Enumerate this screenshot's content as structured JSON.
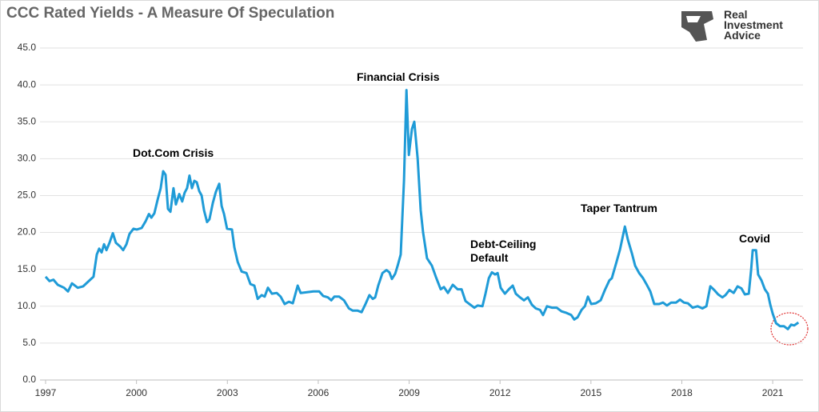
{
  "chart_data": {
    "type": "line",
    "title": "CCC Rated Yields - A Measure Of Speculation",
    "logo": "Real Investment Advice",
    "annotations": [
      "Dot.Com Crisis",
      "Financial Crisis",
      "Debt-Ceiling Default",
      "Taper Tantrum",
      "Covid"
    ],
    "xlim": [
      1997,
      2022
    ],
    "xticks": [
      1997,
      2000,
      2003,
      2006,
      2009,
      2012,
      2015,
      2018,
      2021
    ],
    "ylim": [
      0,
      45
    ],
    "yticks": [
      {
        "value": 0,
        "label": "0.0"
      },
      {
        "value": 5,
        "label": "5.0"
      },
      {
        "value": 10,
        "label": "10.0"
      },
      {
        "value": 15,
        "label": "15.0"
      },
      {
        "value": 20,
        "label": "20.0"
      },
      {
        "value": 25,
        "label": "25.0"
      },
      {
        "value": 30,
        "label": "30.0"
      },
      {
        "value": 35,
        "label": "35.0"
      },
      {
        "value": 40,
        "label": "40.0"
      },
      {
        "value": 45,
        "label": "45.0"
      }
    ],
    "grid": true,
    "x": [
      1997.0,
      1997.13,
      1997.26,
      1997.4,
      1997.61,
      1997.74,
      1997.87,
      1998.06,
      1998.24,
      1998.45,
      1998.58,
      1998.69,
      1998.77,
      1998.85,
      1998.93,
      1999.01,
      1999.11,
      1999.22,
      1999.32,
      1999.46,
      1999.56,
      1999.67,
      1999.77,
      1999.9,
      2000.01,
      2000.17,
      2000.3,
      2000.41,
      2000.49,
      2000.59,
      2000.7,
      2000.8,
      2000.88,
      2000.96,
      2001.04,
      2001.12,
      2001.22,
      2001.3,
      2001.41,
      2001.51,
      2001.59,
      2001.67,
      2001.75,
      2001.83,
      2001.91,
      2001.99,
      2002.07,
      2002.15,
      2002.23,
      2002.33,
      2002.41,
      2002.52,
      2002.62,
      2002.73,
      2002.81,
      2002.89,
      2002.99,
      2003.15,
      2003.23,
      2003.34,
      2003.47,
      2003.63,
      2003.76,
      2003.89,
      2004.0,
      2004.13,
      2004.23,
      2004.34,
      2004.47,
      2004.63,
      2004.76,
      2004.89,
      2005.03,
      2005.16,
      2005.32,
      2005.42,
      2005.63,
      2005.84,
      2006.03,
      2006.16,
      2006.32,
      2006.43,
      2006.53,
      2006.69,
      2006.85,
      2007.01,
      2007.14,
      2007.3,
      2007.43,
      2007.56,
      2007.69,
      2007.8,
      2007.88,
      2007.98,
      2008.12,
      2008.25,
      2008.35,
      2008.43,
      2008.54,
      2008.62,
      2008.72,
      2008.83,
      2008.91,
      2008.99,
      2009.09,
      2009.17,
      2009.28,
      2009.38,
      2009.46,
      2009.59,
      2009.75,
      2009.88,
      2010.04,
      2010.15,
      2010.28,
      2010.44,
      2010.6,
      2010.73,
      2010.86,
      2011.02,
      2011.15,
      2011.26,
      2011.42,
      2011.52,
      2011.63,
      2011.73,
      2011.84,
      2011.92,
      2012.02,
      2012.16,
      2012.29,
      2012.42,
      2012.52,
      2012.66,
      2012.79,
      2012.92,
      2013.05,
      2013.18,
      2013.32,
      2013.42,
      2013.55,
      2013.71,
      2013.87,
      2014.03,
      2014.19,
      2014.35,
      2014.45,
      2014.56,
      2014.69,
      2014.8,
      2014.9,
      2015.01,
      2015.16,
      2015.32,
      2015.46,
      2015.61,
      2015.69,
      2015.83,
      2015.96,
      2016.12,
      2016.22,
      2016.35,
      2016.46,
      2016.59,
      2016.72,
      2016.83,
      2016.96,
      2017.09,
      2017.25,
      2017.38,
      2017.51,
      2017.65,
      2017.81,
      2017.94,
      2018.07,
      2018.2,
      2018.36,
      2018.52,
      2018.68,
      2018.81,
      2018.94,
      2019.07,
      2019.2,
      2019.34,
      2019.44,
      2019.57,
      2019.71,
      2019.84,
      2019.97,
      2020.08,
      2020.21,
      2020.29,
      2020.34,
      2020.45,
      2020.52,
      2020.63,
      2020.74,
      2020.84,
      2020.92,
      2021.0,
      2021.11,
      2021.24,
      2021.37,
      2021.5,
      2021.61,
      2021.71,
      2021.85
    ],
    "series": [
      {
        "name": "CCC Rated Yields",
        "color": "#1f9bd7",
        "values": [
          14,
          13.4,
          13.6,
          12.9,
          12.5,
          12,
          13.1,
          12.5,
          12.7,
          13.5,
          14,
          17,
          17.8,
          17.3,
          18.4,
          17.6,
          18.6,
          19.9,
          18.6,
          18.1,
          17.6,
          18.4,
          19.8,
          20.5,
          20.4,
          20.6,
          21.5,
          22.5,
          22,
          22.6,
          24.5,
          26,
          28.3,
          27.8,
          23.2,
          22.8,
          26,
          23.8,
          25.2,
          24.2,
          25.4,
          26,
          27.7,
          26,
          27,
          26.8,
          25.6,
          25,
          23,
          21.4,
          21.8,
          24,
          25.5,
          26.6,
          23.6,
          22.5,
          20.5,
          20.4,
          18,
          16,
          14.7,
          14.5,
          13,
          12.8,
          11,
          11.5,
          11.3,
          12.5,
          11.7,
          11.8,
          11.3,
          10.3,
          10.6,
          10.4,
          12.8,
          11.8,
          11.9,
          12,
          12,
          11.4,
          11.2,
          10.8,
          11.3,
          11.3,
          10.8,
          9.7,
          9.4,
          9.4,
          9.2,
          10.3,
          11.5,
          11,
          11.2,
          12.8,
          14.5,
          14.9,
          14.6,
          13.7,
          14.4,
          15.5,
          17,
          27,
          39.3,
          30.5,
          34,
          35,
          30,
          23,
          20,
          16.5,
          15.5,
          14,
          12.3,
          12.6,
          11.8,
          12.9,
          12.3,
          12.3,
          10.7,
          10.2,
          9.8,
          10.1,
          10,
          11.7,
          13.8,
          14.6,
          14.3,
          14.5,
          12.5,
          11.7,
          12.3,
          12.8,
          11.7,
          11.2,
          10.8,
          11.2,
          10.2,
          9.7,
          9.5,
          8.8,
          10,
          9.8,
          9.8,
          9.3,
          9.1,
          8.8,
          8.2,
          8.5,
          9.5,
          10,
          11.3,
          10.3,
          10.4,
          10.8,
          12.2,
          13.5,
          13.8,
          15.8,
          17.7,
          20.8,
          19,
          17.2,
          15.5,
          14.5,
          13.8,
          13,
          12,
          10.3,
          10.3,
          10.5,
          10.1,
          10.5,
          10.5,
          10.9,
          10.5,
          10.4,
          9.8,
          10,
          9.7,
          10,
          12.7,
          12.2,
          11.6,
          11.2,
          11.5,
          12.2,
          11.8,
          12.7,
          12.4,
          11.6,
          11.7,
          15,
          17.6,
          17.6,
          14.3,
          13.5,
          12.3,
          11.7,
          10.2,
          9,
          7.7,
          7.3,
          7.3,
          6.9,
          7.5,
          7.4,
          7.8
        ]
      }
    ]
  }
}
